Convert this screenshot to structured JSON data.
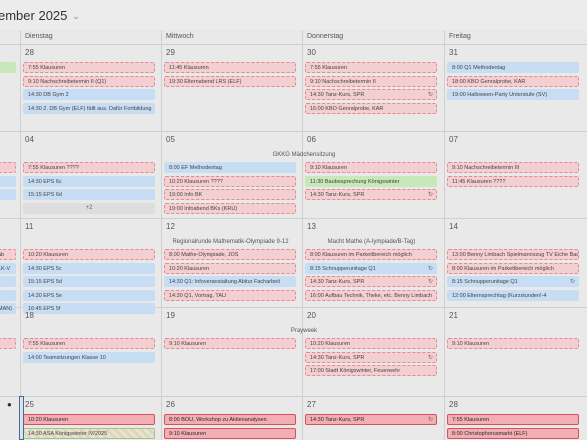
{
  "header": {
    "month_title": "ember 2025"
  },
  "day_names": [
    "Dienstag",
    "Mittwoch",
    "Donnerstag",
    "Freitag"
  ],
  "weeks": [
    {
      "dates": [
        "28",
        "29",
        "30",
        "31"
      ],
      "banners": [],
      "days": [
        [
          {
            "t": "7:55 Klausuren",
            "c": "red"
          },
          {
            "t": "9:10 Nachschreibetermin II (Q1)",
            "c": "red"
          },
          {
            "t": "14:30 DB Gym 2",
            "c": "blue"
          },
          {
            "t": "14:30 2. DB Gym (ELF) fällt aus. Dafür Fortbildung",
            "c": "blue"
          }
        ],
        [
          {
            "t": "11:45 Klausuren",
            "c": "red"
          },
          {
            "t": "19:30 Elternabend LRS (ELF)",
            "c": "red"
          }
        ],
        [
          {
            "t": "7:55 Klausuren",
            "c": "red"
          },
          {
            "t": "9:10 Nachschreibetermin II",
            "c": "red"
          },
          {
            "t": "14:30 Tanz-Kurs, SPR",
            "c": "red",
            "rep": true
          },
          {
            "t": "16:00 KBO Genralprobe, KAR",
            "c": "red"
          }
        ],
        [
          {
            "t": "8:00 Q1 Methodentag",
            "c": "blue"
          },
          {
            "t": "18:00 KBO Genralprobe, KAR",
            "c": "red"
          },
          {
            "t": "19:00 Halloween-Party Unterstufe (SV)",
            "c": "blue"
          }
        ]
      ],
      "more": [
        null,
        null,
        null,
        null
      ]
    },
    {
      "dates": [
        "04",
        "05",
        "06",
        "07"
      ],
      "banners": [
        "GKKG Mädchensitzung"
      ],
      "days": [
        [
          {
            "t": "7:55 Klausuren ????",
            "c": "red"
          },
          {
            "t": "14:30 EPS 6c",
            "c": "blue"
          },
          {
            "t": "15:15 EPS 6d",
            "c": "blue"
          }
        ],
        [
          {
            "t": "8:00 EF Methodentag",
            "c": "blue"
          },
          {
            "t": "10:20 Klausuren ????",
            "c": "red"
          },
          {
            "t": "19:00 Info BK",
            "c": "red"
          },
          {
            "t": "19:00 Infoabend BKs (KRU)",
            "c": "red"
          }
        ],
        [
          {
            "t": "9:10 Klausuren",
            "c": "red"
          },
          {
            "t": "11:30 Baubesprechung Königswinter",
            "c": "green"
          },
          {
            "t": "14:30 Tanz-Kurs, SPR",
            "c": "red",
            "rep": true
          }
        ],
        [
          {
            "t": "9:10 Nachschreibetermin III",
            "c": "red"
          },
          {
            "t": "11:45 Klausuren ????",
            "c": "red"
          }
        ]
      ],
      "more": [
        "+2",
        null,
        null,
        null
      ]
    },
    {
      "dates": [
        "11",
        "12",
        "13",
        "14"
      ],
      "banners": [
        "Regionalrunde Mathematik-Olympiade 9-12",
        "Macht Mathe (A-lympiade/B-Tag)"
      ],
      "days": [
        [
          {
            "t": "10:20 Klausuren",
            "c": "red"
          },
          {
            "t": "14:30 EPS 5c",
            "c": "blue"
          },
          {
            "t": "15:15 EPS 5d",
            "c": "blue"
          },
          {
            "t": "14:30 EPS 5e",
            "c": "blue"
          },
          {
            "t": "16:45 EPS 5f",
            "c": "blue"
          }
        ],
        [
          {
            "t": "8:00 Mathe-Olympiade, JOS",
            "c": "red"
          },
          {
            "t": "10:20 Klausuren",
            "c": "red"
          },
          {
            "t": "14:30 Q1: Infoveranstaltung Abitur Facharbeit",
            "c": "blue"
          },
          {
            "t": "14:30 Q1, Vortrag, TAU",
            "c": "red"
          }
        ],
        [
          {
            "t": "8:00 Klausuren im Parkettbereich möglich",
            "c": "red"
          },
          {
            "t": "8:15 Schnupperunitage Q1",
            "c": "blue",
            "rep": true
          },
          {
            "t": "14:30 Tanz-Kurs, SPR",
            "c": "red",
            "rep": true
          },
          {
            "t": "16:00 Aufbau Technik, Theke, etc. Benny Limbach",
            "c": "red"
          }
        ],
        [
          {
            "t": "13:00 Benny Limbach Spielmannszug TV Eiche Bad Honnef",
            "c": "red"
          },
          {
            "t": "8:00 Klausuren im Parkettbereich möglich",
            "c": "red"
          },
          {
            "t": "8:15 Schnupperunitage Q1",
            "c": "blue",
            "rep": true
          },
          {
            "t": "12:00 Elternsprechtag (Kurzstunden!-4",
            "c": "blue"
          }
        ]
      ],
      "more": [
        null,
        null,
        null,
        null
      ]
    },
    {
      "dates": [
        "18",
        "19",
        "20",
        "21"
      ],
      "banners": [
        "Prayweek"
      ],
      "days": [
        [
          {
            "t": "7:55 Klausuren",
            "c": "red"
          },
          {
            "t": "14:00 Teamsitzungen Klasse 10",
            "c": "blue"
          }
        ],
        [
          {
            "t": "9:10 Klausuren",
            "c": "red"
          }
        ],
        [
          {
            "t": "10:20 Klausuren",
            "c": "red"
          },
          {
            "t": "14:30 Tanz-Kurs, SPR",
            "c": "red",
            "rep": true
          },
          {
            "t": "17:00 Stadt Königswinter, Feuerwehr",
            "c": "red"
          }
        ],
        [
          {
            "t": "9:10 Klausuren",
            "c": "red"
          }
        ]
      ],
      "more": [
        null,
        null,
        null,
        null
      ]
    },
    {
      "dates": [
        "25",
        "26",
        "27",
        "28"
      ],
      "banners": [],
      "days": [
        [
          {
            "t": "10:20 Klausuren",
            "c": "strong"
          },
          {
            "t": "14:30 ASA Königswinter IV/2025",
            "c": "hatch"
          }
        ],
        [
          {
            "t": "8:00 BOU, Workshop zu Aktienanalysen",
            "c": "strong"
          },
          {
            "t": "9:10 Klausuren",
            "c": "strong"
          }
        ],
        [
          {
            "t": "14:30 Tanz-Kurs, SPR",
            "c": "strong",
            "rep": true
          }
        ],
        [
          {
            "t": "7:55 Klausuren",
            "c": "strong"
          },
          {
            "t": "8:00 Christophorusmarkt (ELF)",
            "c": "strong"
          }
        ]
      ],
      "more": [
        null,
        null,
        null,
        null
      ]
    }
  ],
  "monday_partials": [
    [
      {
        "t": "",
        "c": "green"
      }
    ],
    [
      {
        "t": "",
        "c": "red"
      },
      {
        "t": "",
        "c": "blue"
      },
      {
        "t": "",
        "c": "blue"
      }
    ],
    [
      {
        "t": "ab",
        "c": "red"
      },
      {
        "t": "LK-V",
        "c": "blue"
      },
      {
        "t": "",
        "c": "blue"
      },
      {
        "t": "",
        "c": "blue"
      },
      {
        "t": "MAN)",
        "c": "blue"
      }
    ],
    [
      {
        "t": "",
        "c": "red"
      }
    ],
    []
  ],
  "icons": {
    "recurring": "recurring-icon",
    "location": "location-pin-icon",
    "chevron": "chevron-down-icon"
  }
}
